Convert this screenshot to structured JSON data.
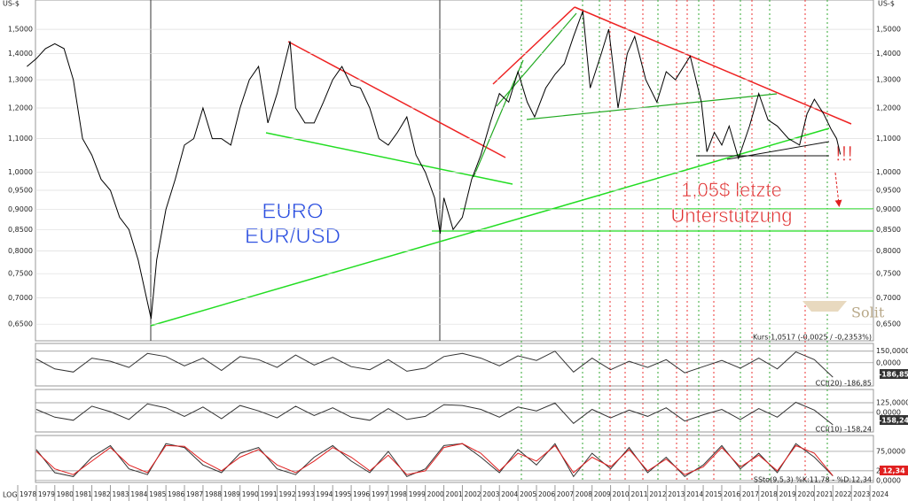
{
  "chart_data": [
    {
      "type": "line",
      "log": true,
      "y_unit": "US-$",
      "scale_label": "LOG",
      "watermark": "Solit",
      "info": "Kurs:1,0517 (-0,0025 / -0,2353%)",
      "annotations": [
        "EURO",
        "EUR/USD",
        "1,05$ letzte",
        "Unterstützung",
        "!!!"
      ],
      "color": "#000000",
      "grid": true,
      "xlim": [
        1978,
        2025
      ],
      "xticks": [
        1978,
        1979,
        1980,
        1981,
        1982,
        1983,
        1984,
        1985,
        1986,
        1987,
        1988,
        1989,
        1990,
        1991,
        1992,
        1993,
        1994,
        1995,
        1996,
        1997,
        1998,
        1999,
        2000,
        2001,
        2002,
        2003,
        2004,
        2005,
        2006,
        2007,
        2008,
        2009,
        2010,
        2011,
        2012,
        2013,
        2014,
        2015,
        2016,
        2017,
        2018,
        2019,
        2020,
        2021,
        2022,
        2023,
        2024
      ],
      "ylim": [
        0.62,
        1.63
      ],
      "yticks": [
        {
          "value": 1.5,
          "label": "1,5000"
        },
        {
          "value": 1.4,
          "label": "1,4000"
        },
        {
          "value": 1.3,
          "label": "1,3000"
        },
        {
          "value": 1.2,
          "label": "1,2000"
        },
        {
          "value": 1.1,
          "label": "1,1000"
        },
        {
          "value": 1.0,
          "label": "1,0000"
        },
        {
          "value": 0.95,
          "label": "0,9500"
        },
        {
          "value": 0.9,
          "label": "0,9000"
        },
        {
          "value": 0.85,
          "label": "0,8500"
        },
        {
          "value": 0.8,
          "label": "0,8000"
        },
        {
          "value": 0.75,
          "label": "0,7500"
        },
        {
          "value": 0.7,
          "label": "0,7000"
        },
        {
          "value": 0.65,
          "label": "0,6500"
        }
      ],
      "x": [
        1978.5,
        1979,
        1979.5,
        1980,
        1980.5,
        1981,
        1981.5,
        1982,
        1982.5,
        1983,
        1983.5,
        1984,
        1984.5,
        1985.2,
        1985.5,
        1986,
        1986.5,
        1987,
        1987.5,
        1988,
        1988.5,
        1989,
        1989.5,
        1990,
        1990.5,
        1991,
        1991.5,
        1992,
        1992.7,
        1993,
        1993.5,
        1994,
        1994.5,
        1995,
        1995.5,
        1996,
        1996.5,
        1997,
        1997.5,
        1998,
        1998.5,
        1999,
        1999.5,
        2000,
        2000.5,
        2000.8,
        2001,
        2001.5,
        2002,
        2002.5,
        2003,
        2003.5,
        2004,
        2004.5,
        2005,
        2005.5,
        2005.9,
        2006.5,
        2007,
        2007.5,
        2008,
        2008.5,
        2008.9,
        2009.5,
        2009.9,
        2010.4,
        2010.9,
        2011.3,
        2011.9,
        2012.5,
        2013,
        2013.5,
        2014.3,
        2014.9,
        2015.2,
        2015.6,
        2016,
        2016.4,
        2016.9,
        2017.5,
        2018,
        2018.5,
        2019,
        2019.6,
        2020.2,
        2020.6,
        2021,
        2021.5,
        2021.9,
        2022.2,
        2022.4
      ],
      "values": [
        1.35,
        1.38,
        1.42,
        1.44,
        1.42,
        1.3,
        1.1,
        1.05,
        0.98,
        0.95,
        0.88,
        0.85,
        0.78,
        0.66,
        0.78,
        0.9,
        0.98,
        1.08,
        1.1,
        1.2,
        1.1,
        1.1,
        1.08,
        1.2,
        1.3,
        1.35,
        1.15,
        1.25,
        1.45,
        1.2,
        1.15,
        1.15,
        1.22,
        1.3,
        1.35,
        1.28,
        1.27,
        1.2,
        1.1,
        1.08,
        1.12,
        1.17,
        1.05,
        1.0,
        0.93,
        0.84,
        0.93,
        0.85,
        0.88,
        0.98,
        1.05,
        1.15,
        1.25,
        1.22,
        1.33,
        1.22,
        1.17,
        1.27,
        1.32,
        1.36,
        1.47,
        1.58,
        1.27,
        1.4,
        1.5,
        1.2,
        1.4,
        1.47,
        1.3,
        1.22,
        1.33,
        1.3,
        1.39,
        1.22,
        1.06,
        1.12,
        1.08,
        1.14,
        1.04,
        1.14,
        1.25,
        1.16,
        1.14,
        1.1,
        1.08,
        1.18,
        1.23,
        1.18,
        1.13,
        1.1,
        1.0517
      ]
    },
    {
      "type": "line",
      "title": "CCI(20) -186,85",
      "badge": "-186,85",
      "badge_color": "#333333",
      "xlim": [
        1978,
        2025
      ],
      "ylim": [
        -300,
        250
      ],
      "yticks": [
        {
          "value": 150,
          "label": "150,0000"
        },
        {
          "value": 0,
          "label": "0,0000"
        }
      ],
      "x": [
        1979,
        1980,
        1981,
        1982,
        1983,
        1984,
        1985,
        1986,
        1987,
        1988,
        1989,
        1990,
        1991,
        1992,
        1993,
        1994,
        1995,
        1996,
        1997,
        1998,
        1999,
        2000,
        2001,
        2002,
        2003,
        2004,
        2005,
        2006,
        2007,
        2008,
        2009,
        2010,
        2011,
        2012,
        2013,
        2014,
        2015,
        2016,
        2017,
        2018,
        2019,
        2020,
        2021,
        2022
      ],
      "series": [
        {
          "color": "#333333",
          "values": [
            50,
            -80,
            -120,
            60,
            20,
            -60,
            120,
            80,
            -40,
            60,
            -100,
            80,
            40,
            -60,
            100,
            -30,
            70,
            -50,
            -90,
            40,
            -110,
            -70,
            80,
            120,
            60,
            -40,
            90,
            30,
            150,
            -120,
            60,
            -90,
            20,
            -60,
            40,
            -130,
            -50,
            30,
            -70,
            60,
            -80,
            140,
            40,
            -186.85
          ]
        }
      ]
    },
    {
      "type": "line",
      "title": "CCI(10) -158,24",
      "badge": "-158,24",
      "badge_color": "#333333",
      "xlim": [
        1978,
        2025
      ],
      "ylim": [
        -250,
        295
      ],
      "yticks": [
        {
          "value": 125,
          "label": "125,0000"
        },
        {
          "value": 0,
          "label": "0,0000"
        }
      ],
      "x": [
        1979,
        1980,
        1981,
        1982,
        1983,
        1984,
        1985,
        1986,
        1987,
        1988,
        1989,
        1990,
        1991,
        1992,
        1993,
        1994,
        1995,
        1996,
        1997,
        1998,
        1999,
        2000,
        2001,
        2002,
        2003,
        2004,
        2005,
        2006,
        2007,
        2008,
        2009,
        2010,
        2011,
        2012,
        2013,
        2014,
        2015,
        2016,
        2017,
        2018,
        2019,
        2020,
        2021,
        2022
      ],
      "series": [
        {
          "color": "#333333",
          "values": [
            40,
            -60,
            -100,
            80,
            10,
            -90,
            110,
            60,
            -50,
            70,
            -80,
            90,
            20,
            -70,
            80,
            -40,
            60,
            -60,
            -100,
            50,
            -90,
            -50,
            100,
            90,
            40,
            -60,
            70,
            20,
            120,
            -140,
            40,
            -70,
            30,
            -50,
            60,
            -110,
            -30,
            40,
            -90,
            50,
            -60,
            130,
            30,
            -158.24
          ]
        }
      ]
    },
    {
      "type": "line",
      "title": "SSto(9,5,3) %K:11,78 - %D:12,34",
      "badge": "12,34",
      "badge_color": "#e02020",
      "xlim": [
        1978,
        2025
      ],
      "ylim": [
        -5,
        116
      ],
      "yticks": [
        {
          "value": 75,
          "label": "75,0000"
        },
        {
          "value": 25,
          "label": "25,0000"
        },
        {
          "value": 0,
          "label": "0,0000"
        }
      ],
      "x": [
        1979,
        1980,
        1981,
        1982,
        1983,
        1984,
        1985,
        1986,
        1987,
        1988,
        1989,
        1990,
        1991,
        1992,
        1993,
        1994,
        1995,
        1996,
        1997,
        1998,
        1999,
        2000,
        2001,
        2002,
        2003,
        2004,
        2005,
        2006,
        2007,
        2008,
        2009,
        2010,
        2011,
        2012,
        2013,
        2014,
        2015,
        2016,
        2017,
        2018,
        2019,
        2020,
        2021,
        2022
      ],
      "series": [
        {
          "color": "#333333",
          "values": [
            80,
            20,
            10,
            60,
            90,
            30,
            15,
            95,
            85,
            40,
            20,
            70,
            85,
            30,
            15,
            60,
            90,
            50,
            20,
            75,
            10,
            30,
            90,
            95,
            60,
            20,
            80,
            40,
            95,
            10,
            70,
            30,
            85,
            20,
            60,
            10,
            40,
            90,
            30,
            70,
            20,
            95,
            60,
            11.78
          ]
        },
        {
          "color": "#e02020",
          "values": [
            75,
            30,
            15,
            50,
            85,
            40,
            20,
            90,
            88,
            50,
            25,
            60,
            80,
            40,
            20,
            50,
            85,
            60,
            25,
            65,
            15,
            25,
            85,
            95,
            70,
            25,
            70,
            50,
            90,
            20,
            60,
            35,
            80,
            25,
            55,
            15,
            35,
            85,
            35,
            65,
            25,
            90,
            70,
            12.34
          ]
        }
      ]
    }
  ]
}
